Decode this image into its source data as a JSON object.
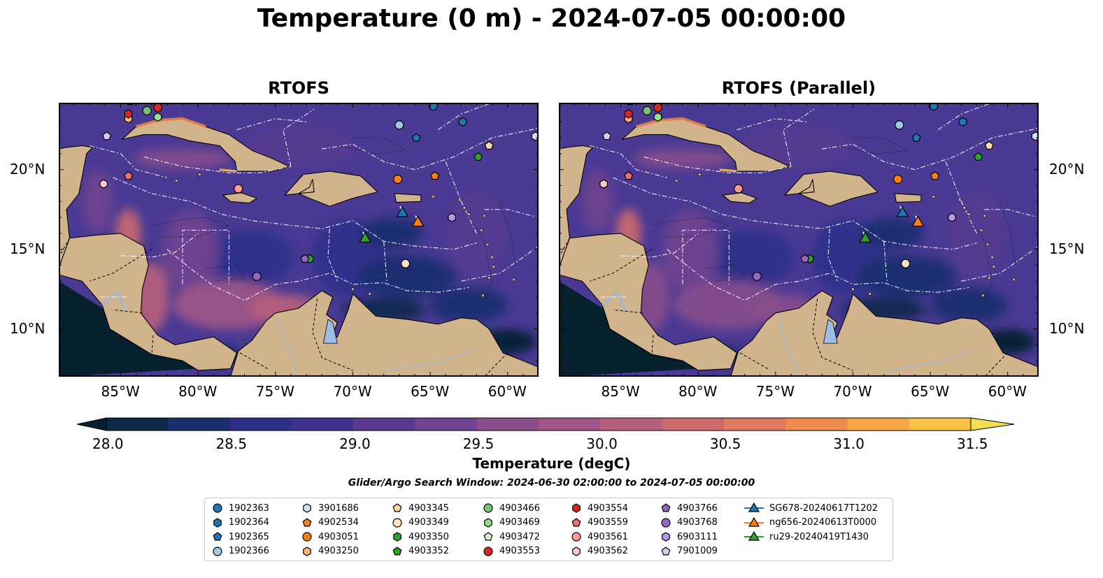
{
  "suptitle": "Temperature (0 m) - 2024-07-05 00:00:00",
  "panels": [
    {
      "title": "RTOFS"
    },
    {
      "title": "RTOFS (Parallel)"
    }
  ],
  "map": {
    "lon_range": [
      -89,
      -58
    ],
    "lat_range": [
      7,
      24.2
    ],
    "lon_ticks": [
      "85°W",
      "80°W",
      "75°W",
      "70°W",
      "65°W",
      "60°W"
    ],
    "lat_ticks": [
      "20°N",
      "15°N",
      "10°N"
    ]
  },
  "colors": {
    "land": "#d2b48c",
    "ocean_base": "#4a3a94",
    "deep": "#06202d",
    "warm": "#e8804c"
  },
  "colorbar": {
    "label": "Temperature (degC)",
    "ticks": [
      "28.0",
      "28.5",
      "29.0",
      "29.5",
      "30.0",
      "30.5",
      "31.0",
      "31.5"
    ],
    "min": 28.0,
    "max": 31.5,
    "step": 0.25,
    "colors": [
      "#0b2a4a",
      "#1a2f6e",
      "#2c3089",
      "#40338f",
      "#583a91",
      "#704490",
      "#884e8c",
      "#a05686",
      "#b85f7c",
      "#cd6a6e",
      "#df7961",
      "#ee8c50",
      "#f7a545",
      "#fbc343",
      "#f4de4f"
    ]
  },
  "search_window": "Glider/Argo Search Window: 2024-06-30 02:00:00 to 2024-07-05 00:00:00",
  "legend": {
    "columns": [
      [
        {
          "label": "1902363",
          "marker": "circle",
          "color": "#1f77b4"
        },
        {
          "label": "1902364",
          "marker": "hexagon",
          "color": "#1f77b4"
        },
        {
          "label": "1902365",
          "marker": "pentagon",
          "color": "#1f77b4"
        },
        {
          "label": "1902366",
          "marker": "circle",
          "color": "#9ecae1"
        }
      ],
      [
        {
          "label": "3901686",
          "marker": "hexagon",
          "color": "#c6e6f5"
        },
        {
          "label": "4902534",
          "marker": "pentagon",
          "color": "#ff7f0e"
        },
        {
          "label": "4903051",
          "marker": "circle",
          "color": "#ff7f0e"
        },
        {
          "label": "4903250",
          "marker": "hexagon",
          "color": "#ffb870"
        }
      ],
      [
        {
          "label": "4903345",
          "marker": "pentagon",
          "color": "#ffd9a8"
        },
        {
          "label": "4903349",
          "marker": "circle",
          "color": "#ffe0c0"
        },
        {
          "label": "4903350",
          "marker": "hexagon",
          "color": "#2ca02c"
        },
        {
          "label": "4903352",
          "marker": "pentagon",
          "color": "#2ca02c"
        }
      ],
      [
        {
          "label": "4903466",
          "marker": "circle",
          "color": "#74c476"
        },
        {
          "label": "4903469",
          "marker": "hexagon",
          "color": "#98df8a"
        },
        {
          "label": "4903472",
          "marker": "pentagon",
          "color": "#d5f5c8"
        },
        {
          "label": "4903553",
          "marker": "circle",
          "color": "#d62728"
        }
      ],
      [
        {
          "label": "4903554",
          "marker": "hexagon",
          "color": "#d62728"
        },
        {
          "label": "4903559",
          "marker": "pentagon",
          "color": "#f07070"
        },
        {
          "label": "4903561",
          "marker": "circle",
          "color": "#ff9896"
        },
        {
          "label": "4903562",
          "marker": "hexagon",
          "color": "#ffc8c8"
        }
      ],
      [
        {
          "label": "4903766",
          "marker": "pentagon",
          "color": "#9467bd"
        },
        {
          "label": "4903768",
          "marker": "circle",
          "color": "#9467bd"
        },
        {
          "label": "6903111",
          "marker": "hexagon",
          "color": "#b89ae0"
        },
        {
          "label": "7901009",
          "marker": "pentagon",
          "color": "#dcc8f0"
        }
      ],
      [
        {
          "label": "SG678-20240617T1202",
          "marker": "triangle",
          "color": "#1f77b4"
        },
        {
          "label": "ng656-20240613T0000",
          "marker": "triangle",
          "color": "#ff7f0e"
        },
        {
          "label": "ru29-20240419T1430",
          "marker": "triangle",
          "color": "#2ca02c"
        }
      ]
    ]
  },
  "floats": [
    {
      "id": "1902363",
      "lon": -64.8,
      "lat": 24.0,
      "marker": "circle",
      "color": "#1f77b4"
    },
    {
      "id": "1902364",
      "lon": -62.9,
      "lat": 23.0,
      "marker": "hexagon",
      "color": "#1f77b4"
    },
    {
      "id": "1902365",
      "lon": -65.9,
      "lat": 22.0,
      "marker": "pentagon",
      "color": "#1f77b4"
    },
    {
      "id": "1902366",
      "lon": -67.0,
      "lat": 22.8,
      "marker": "circle",
      "color": "#9ecae1"
    },
    {
      "id": "3901686",
      "lon": -58.2,
      "lat": 22.1,
      "marker": "hexagon",
      "color": "#c6e6f5"
    },
    {
      "id": "4902534",
      "lon": -64.7,
      "lat": 19.6,
      "marker": "pentagon",
      "color": "#ff7f0e"
    },
    {
      "id": "4903051",
      "lon": -67.1,
      "lat": 19.4,
      "marker": "circle",
      "color": "#ff7f0e"
    },
    {
      "id": "4903250",
      "lon": -84.5,
      "lat": 23.2,
      "marker": "hexagon",
      "color": "#ffb870"
    },
    {
      "id": "4903345",
      "lon": -61.2,
      "lat": 21.5,
      "marker": "pentagon",
      "color": "#ffd9a8"
    },
    {
      "id": "4903349",
      "lon": -66.6,
      "lat": 14.1,
      "marker": "circle",
      "color": "#ffe0c0"
    },
    {
      "id": "4903350",
      "lon": -72.8,
      "lat": 14.4,
      "marker": "hexagon",
      "color": "#2ca02c"
    },
    {
      "id": "4903352",
      "lon": -61.9,
      "lat": 20.8,
      "marker": "pentagon",
      "color": "#2ca02c"
    },
    {
      "id": "4903466",
      "lon": -83.3,
      "lat": 23.7,
      "marker": "circle",
      "color": "#74c476"
    },
    {
      "id": "4903469",
      "lon": -82.6,
      "lat": 23.3,
      "marker": "hexagon",
      "color": "#98df8a"
    },
    {
      "id": "4903472",
      "lon": -84.4,
      "lat": 24.3,
      "marker": "pentagon",
      "color": "#d5f5c8"
    },
    {
      "id": "4903553",
      "lon": -82.6,
      "lat": 23.9,
      "marker": "circle",
      "color": "#d62728"
    },
    {
      "id": "4903554",
      "lon": -84.5,
      "lat": 23.5,
      "marker": "hexagon",
      "color": "#d62728"
    },
    {
      "id": "4903559",
      "lon": -84.5,
      "lat": 19.6,
      "marker": "pentagon",
      "color": "#f07070"
    },
    {
      "id": "4903561",
      "lon": -77.4,
      "lat": 18.8,
      "marker": "circle",
      "color": "#ff9896"
    },
    {
      "id": "4903562",
      "lon": -86.1,
      "lat": 19.1,
      "marker": "hexagon",
      "color": "#ffc8c8"
    },
    {
      "id": "4903766",
      "lon": -73.1,
      "lat": 14.4,
      "marker": "pentagon",
      "color": "#9467bd"
    },
    {
      "id": "4903768",
      "lon": -76.2,
      "lat": 13.3,
      "marker": "circle",
      "color": "#9467bd"
    },
    {
      "id": "6903111",
      "lon": -63.6,
      "lat": 17.0,
      "marker": "hexagon",
      "color": "#b89ae0"
    },
    {
      "id": "7901009",
      "lon": -85.9,
      "lat": 22.1,
      "marker": "pentagon",
      "color": "#dcc8f0"
    }
  ],
  "gliders": [
    {
      "id": "SG678-20240617T1202",
      "lon": -66.8,
      "lat": 17.3,
      "color": "#1f77b4"
    },
    {
      "id": "ng656-20240613T0000",
      "lon": -65.8,
      "lat": 16.7,
      "color": "#ff7f0e"
    },
    {
      "id": "ru29-20240419T1430",
      "lon": -69.2,
      "lat": 15.7,
      "color": "#2ca02c"
    }
  ]
}
